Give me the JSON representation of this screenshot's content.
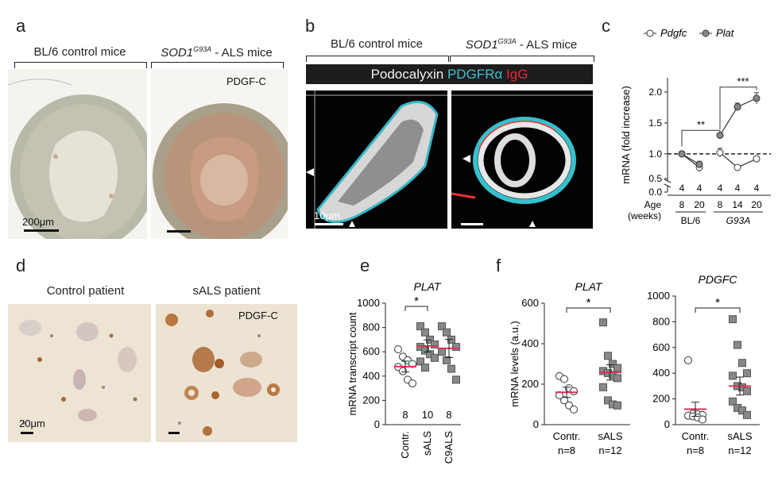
{
  "panels": {
    "a": {
      "label": "a",
      "left_header": "BL/6 control mice",
      "right_header_gene": "SOD1",
      "right_header_sup": "G93A",
      "right_header_rest": " - ALS mice",
      "annotation": "PDGF-C",
      "scale": "200μm"
    },
    "b": {
      "label": "b",
      "left_header": "BL/6 control mice",
      "right_header_gene": "SOD1",
      "right_header_sup": "G93A",
      "right_header_rest": " - ALS mice",
      "stain_1": "Podocalyxin",
      "stain_2": "PDGFRα",
      "stain_3": "IgG",
      "stain_colors": [
        "#f2f2f2",
        "#3cc3d0",
        "#e8283b"
      ],
      "scale": "10μm"
    },
    "c": {
      "label": "c"
    },
    "d": {
      "label": "d",
      "left_header": "Control patient",
      "right_header": "sALS patient",
      "annotation": "PDGF-C",
      "scale": "20μm"
    },
    "e": {
      "label": "e"
    },
    "f": {
      "label": "f"
    }
  },
  "chart_data": [
    {
      "id": "c",
      "type": "line",
      "ylabel": "mRNA (fold increase)",
      "yticks": [
        "0.0",
        "0.5",
        "1.0",
        "1.5",
        "2.0"
      ],
      "ylim": [
        0,
        2.1
      ],
      "y_break": [
        0.1,
        0.6
      ],
      "reference_line": 1.0,
      "x_title": "Age",
      "x_title_2": "(weeks)",
      "x_ticks": [
        "8",
        "20",
        "8",
        "14",
        "20"
      ],
      "groups": [
        "BL/6",
        "G93A"
      ],
      "n_labels": [
        "4",
        "4",
        "4",
        "4",
        "4"
      ],
      "significance": [
        "**",
        "***"
      ],
      "legend": [
        {
          "name": "Pdgfc",
          "marker": "open-circle"
        },
        {
          "name": "Plat",
          "marker": "filled-circle"
        }
      ],
      "series": [
        {
          "name": "Pdgfc",
          "groups": [
            {
              "x": [
                "8",
                "20"
              ],
              "values": [
                1.0,
                0.78
              ]
            },
            {
              "x": [
                "8",
                "14",
                "20"
              ],
              "values": [
                1.02,
                0.78,
                0.92
              ]
            }
          ],
          "errors": [
            0.02,
            0.07,
            0.07,
            0.03,
            0.02
          ]
        },
        {
          "name": "Plat",
          "groups": [
            {
              "x": [
                "8",
                "20"
              ],
              "values": [
                1.0,
                0.83
              ]
            },
            {
              "x": [
                "8",
                "14",
                "20"
              ],
              "values": [
                1.3,
                1.76,
                1.9
              ]
            }
          ],
          "errors": [
            0.02,
            0.05,
            0.03,
            0.06,
            0.09
          ]
        }
      ]
    },
    {
      "id": "e",
      "type": "scatter",
      "title": "PLAT",
      "ylabel": "mRNA transcript count",
      "yticks": [
        "0",
        "200",
        "400",
        "600",
        "800",
        "1000"
      ],
      "ylim": [
        0,
        1000
      ],
      "categories": [
        "Contr.",
        "sALS",
        "C9ALS"
      ],
      "n_labels": [
        "8",
        "10",
        "8"
      ],
      "significance": "*",
      "means": [
        478,
        648,
        628
      ],
      "errors": [
        45,
        50,
        75
      ],
      "series": [
        {
          "name": "Contr.",
          "marker": "open-circle",
          "values": [
            620,
            560,
            530,
            500,
            475,
            440,
            370,
            340
          ]
        },
        {
          "name": "sALS",
          "marker": "filled-square",
          "values": [
            810,
            760,
            700,
            660,
            640,
            610,
            580,
            550,
            520,
            470
          ]
        },
        {
          "name": "C9ALS",
          "marker": "filled-square",
          "values": [
            810,
            760,
            700,
            640,
            600,
            530,
            460,
            370
          ]
        }
      ]
    },
    {
      "id": "f1",
      "type": "scatter",
      "title": "PLAT",
      "ylabel": "mRNA levels (a.u.)",
      "yticks": [
        "0",
        "200",
        "400",
        "600"
      ],
      "ylim": [
        0,
        600
      ],
      "categories": [
        "Contr.",
        "sALS"
      ],
      "n_labels": [
        "n=8",
        "n=12"
      ],
      "significance": "*",
      "means": [
        160,
        258
      ],
      "errors": [
        25,
        38
      ],
      "series": [
        {
          "name": "Contr.",
          "marker": "open-circle",
          "values": [
            240,
            225,
            180,
            165,
            145,
            120,
            95,
            75
          ]
        },
        {
          "name": "sALS",
          "marker": "filled-square",
          "values": [
            505,
            340,
            300,
            280,
            265,
            255,
            245,
            230,
            185,
            120,
            100,
            95
          ]
        }
      ]
    },
    {
      "id": "f2",
      "type": "scatter",
      "title": "PDGFC",
      "ylabel": "",
      "yticks": [
        "0",
        "200",
        "400",
        "600",
        "800",
        "1000"
      ],
      "ylim": [
        0,
        1000
      ],
      "categories": [
        "Contr.",
        "sALS"
      ],
      "n_labels": [
        "n=8",
        "n=12"
      ],
      "significance": "*",
      "means": [
        120,
        300
      ],
      "errors": [
        55,
        70
      ],
      "series": [
        {
          "name": "Contr.",
          "marker": "open-circle",
          "values": [
            500,
            85,
            80,
            75,
            70,
            65,
            55,
            40
          ]
        },
        {
          "name": "sALS",
          "marker": "filled-square",
          "values": [
            820,
            620,
            480,
            400,
            380,
            300,
            290,
            260,
            180,
            130,
            110,
            75
          ]
        }
      ]
    }
  ]
}
